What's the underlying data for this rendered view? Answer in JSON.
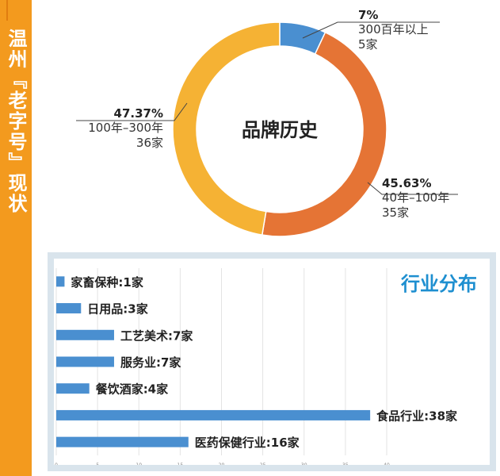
{
  "side_title": "温州『老字号』现状",
  "chart_data": [
    {
      "type": "pie",
      "title": "品牌历史",
      "slices": [
        {
          "label": "300百年以上",
          "count": "5家",
          "percent": 7,
          "percent_label": "7%",
          "color": "#4a8fd0"
        },
        {
          "label": "40年–100年",
          "count": "35家",
          "percent": 45.63,
          "percent_label": "45.63%",
          "color": "#e57435"
        },
        {
          "label": "100年–300年",
          "count": "36家",
          "percent": 47.37,
          "percent_label": "47.37%",
          "color": "#f5b234"
        }
      ]
    },
    {
      "type": "bar",
      "orientation": "horizontal",
      "title": "行业分布",
      "categories": [
        "家畜保种",
        "日用品",
        "工艺美术",
        "服务业",
        "餐饮酒家",
        "食品行业",
        "医药保健行业"
      ],
      "values": [
        1,
        3,
        7,
        7,
        4,
        38,
        16
      ],
      "labels": [
        "家畜保种:1家",
        "日用品:3家",
        "工艺美术:7家",
        "服务业:7家",
        "餐饮酒家:4家",
        "食品行业:38家",
        "医药保健行业:16家"
      ],
      "xlim": [
        0,
        40
      ],
      "xticks": [
        "0",
        "5",
        "10",
        "15",
        "20",
        "25",
        "30",
        "35",
        "40"
      ],
      "bar_color": "#4a8fd0",
      "grid": true
    }
  ]
}
